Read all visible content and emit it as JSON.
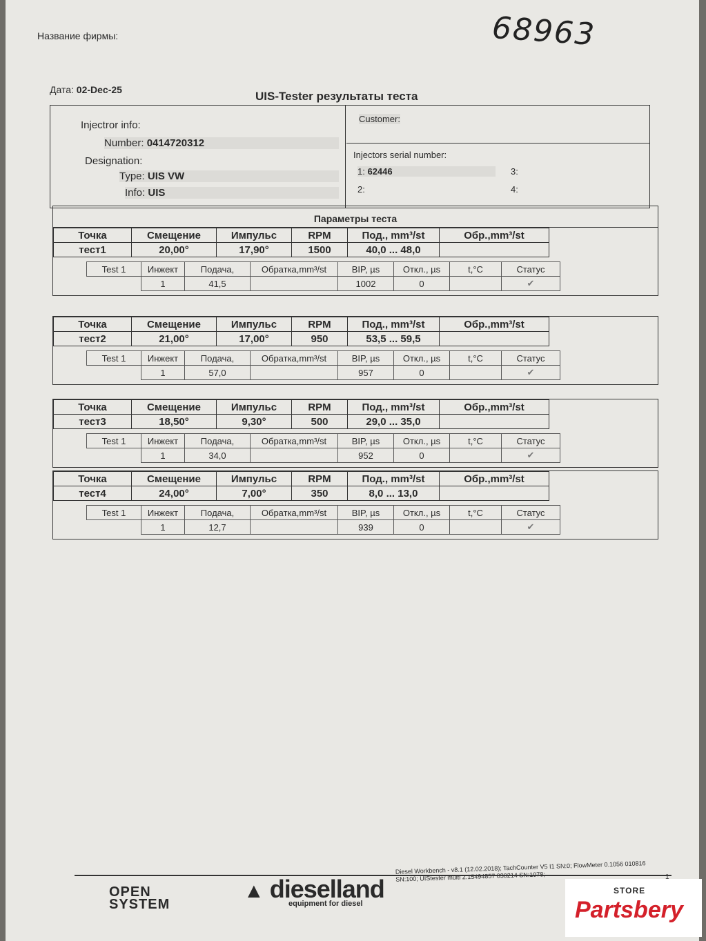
{
  "header": {
    "firm_label": "Название фирмы:",
    "handwritten_number": "68963",
    "date_label": "Дата:",
    "date_value": "02-Dec-25",
    "title": "UIS-Tester результаты теста"
  },
  "injector": {
    "heading": "Injectror info:",
    "number_label": "Number:",
    "number": "0414720312",
    "designation_label": "Designation:",
    "type_label": "Type:",
    "type": "UIS VW",
    "info_label": "Info:",
    "info": "UIS",
    "customer_label": "Customer:",
    "serial_label": "Injectors serial number:",
    "serial_1_label": "1:",
    "serial_1": "62446",
    "serial_2_label": "2:",
    "serial_3_label": "3:",
    "serial_4_label": "4:"
  },
  "params_title": "Параметры теста",
  "param_headers": [
    "Точка",
    "Смещение",
    "Импульс",
    "RPM",
    "Под., mm³/st",
    "Обр.,mm³/st"
  ],
  "result_headers": [
    "Test 1",
    "Инжект",
    "Подача,",
    "Обратка,mm³/st",
    "BIP, µs",
    "Откл., µs",
    "t,°C",
    "Статус"
  ],
  "tests": [
    {
      "point": "тест1",
      "offset": "20,00°",
      "impulse": "17,90°",
      "rpm": "1500",
      "delivery": "40,0 ... 48,0",
      "return": "",
      "injector": "1",
      "supply": "41,5",
      "back": "",
      "bip": "1002",
      "dev": "0",
      "temp": "",
      "status": "ok"
    },
    {
      "point": "тест2",
      "offset": "21,00°",
      "impulse": "17,00°",
      "rpm": "950",
      "delivery": "53,5 ... 59,5",
      "return": "",
      "injector": "1",
      "supply": "57,0",
      "back": "",
      "bip": "957",
      "dev": "0",
      "temp": "",
      "status": "ok"
    },
    {
      "point": "тест3",
      "offset": "18,50°",
      "impulse": "9,30°",
      "rpm": "500",
      "delivery": "29,0 ... 35,0",
      "return": "",
      "injector": "1",
      "supply": "34,0",
      "back": "",
      "bip": "952",
      "dev": "0",
      "temp": "",
      "status": "ok"
    },
    {
      "point": "тест4",
      "offset": "24,00°",
      "impulse": "7,00°",
      "rpm": "350",
      "delivery": "8,0 ... 13,0",
      "return": "",
      "injector": "1",
      "supply": "12,7",
      "back": "",
      "bip": "939",
      "dev": "0",
      "temp": "",
      "status": "ok"
    }
  ],
  "footer": {
    "software": "Diesel Workbench - v8.1 (12.02.2018); TachCounter V5 I1 SN:0; FlowMeter 0.1056 010816 SN:100; UIStester multi 2.15494857 030214 SN:1078;",
    "page": "1",
    "logo_open": "OPEN",
    "logo_system": "SYSTEM",
    "logo_dl": "dieselland",
    "logo_dl_sub": "equipment for diesel"
  },
  "watermark": {
    "store": "STORE",
    "brand": "Partsbery"
  },
  "colors": {
    "paper": "#e9e8e4",
    "brand_red": "#d4202a"
  },
  "icons": {
    "status_ok": "check-mark-icon"
  }
}
